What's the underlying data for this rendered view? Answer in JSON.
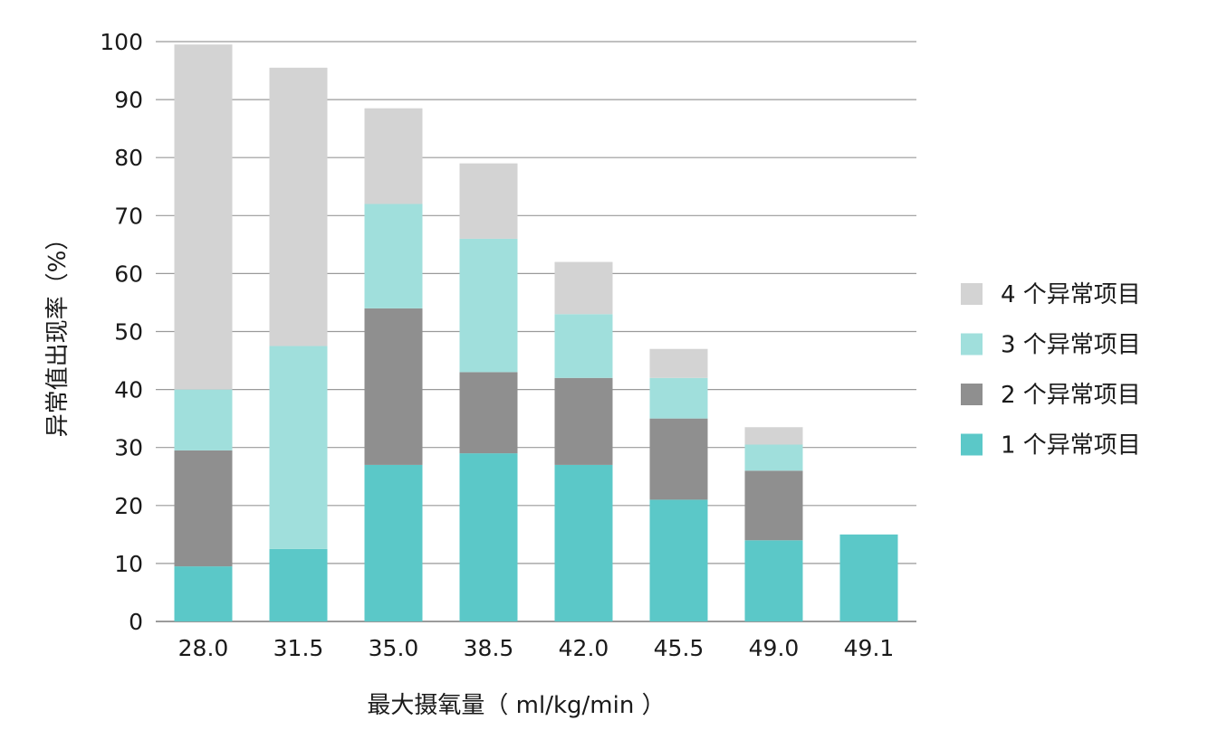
{
  "chart_data": {
    "type": "bar",
    "stacked": true,
    "title": "",
    "xlabel": "最大摄氧量（ ml/kg/min ）",
    "ylabel": "异常值出现率（%）",
    "categories": [
      "28.0",
      "31.5",
      "35.0",
      "38.5",
      "42.0",
      "45.5",
      "49.0",
      "49.1"
    ],
    "ylim": [
      0,
      100
    ],
    "yticks": [
      "0",
      "10",
      "20",
      "30",
      "40",
      "50",
      "60",
      "70",
      "80",
      "90",
      "100"
    ],
    "grid": true,
    "legend_position": "right",
    "series": [
      {
        "name": "1 个异常项目",
        "color": "#5bc8c8",
        "values": [
          9.5,
          12.5,
          27,
          29,
          27,
          21,
          14,
          15
        ]
      },
      {
        "name": "2 个异常项目",
        "color": "#8f8f8f",
        "values": [
          20,
          0,
          27,
          14,
          15,
          14,
          12,
          0
        ]
      },
      {
        "name": "3 个异常项目",
        "color": "#a0dfdc",
        "values": [
          10.5,
          35,
          18,
          23,
          11,
          7,
          4.5,
          0
        ]
      },
      {
        "name": "4 个异常项目",
        "color": "#d3d3d3",
        "values": [
          59.5,
          48,
          16.5,
          13,
          9,
          5,
          3,
          0
        ]
      }
    ],
    "legend_order": [
      "4 个异常项目",
      "3 个异常项目",
      "2 个异常项目",
      "1 个异常项目"
    ]
  }
}
